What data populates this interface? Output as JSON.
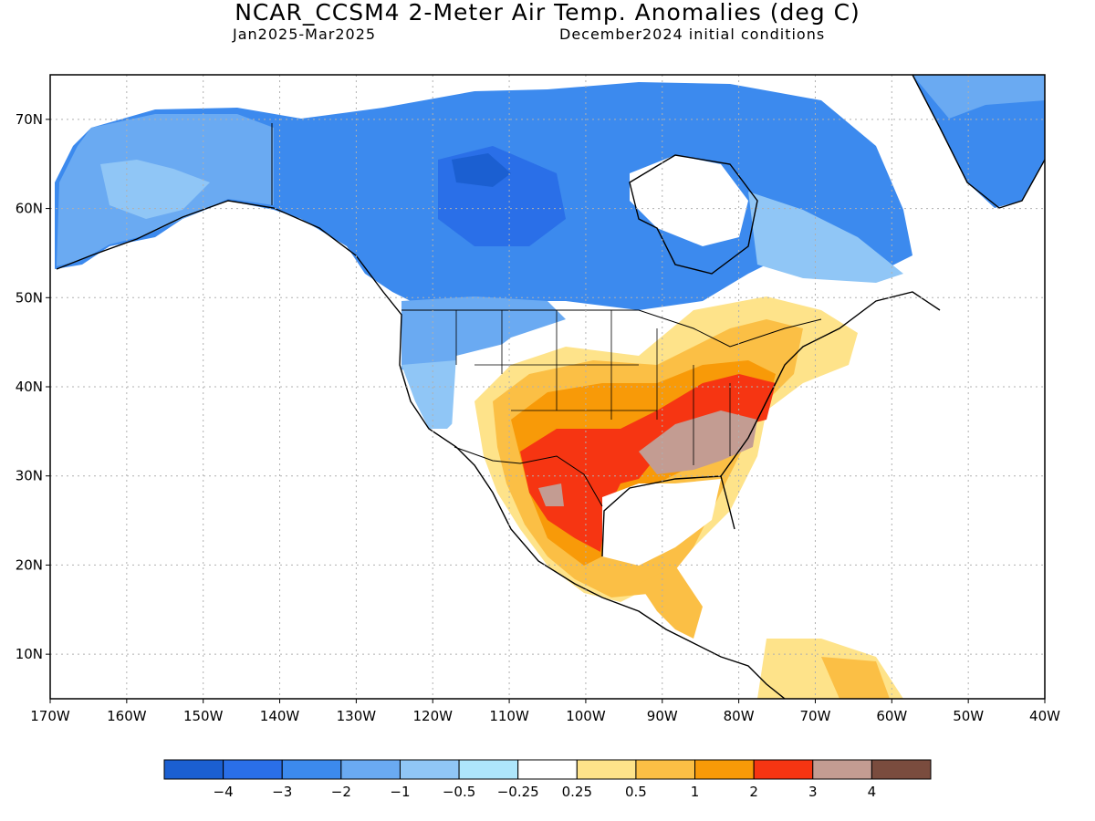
{
  "title": "NCAR_CCSM4 2-Meter Air Temp. Anomalies (deg C)",
  "subtitle_left": "Jan2025-Mar2025",
  "subtitle_right": "December2024 initial conditions",
  "map": {
    "lon_range": [
      -170,
      -40
    ],
    "lat_range": [
      5,
      75
    ],
    "lon_ticks": [
      "170W",
      "160W",
      "150W",
      "140W",
      "130W",
      "120W",
      "110W",
      "100W",
      "90W",
      "80W",
      "70W",
      "60W",
      "50W",
      "40W"
    ],
    "lat_ticks": [
      "10N",
      "20N",
      "30N",
      "40N",
      "50N",
      "60N",
      "70N"
    ],
    "grid": "dotted",
    "regions": [
      {
        "name": "alaska",
        "anomaly": "-2 to -1"
      },
      {
        "name": "northern-canada",
        "anomaly": "-3 to -2"
      },
      {
        "name": "hudson-bay-west",
        "anomaly": "-4 to -3"
      },
      {
        "name": "greenland",
        "anomaly": "-3 to -2"
      },
      {
        "name": "us-northwest",
        "anomaly": "-1 to -0.25"
      },
      {
        "name": "us-southwest-plains",
        "anomaly": "0.5 to 2"
      },
      {
        "name": "texas-mexico",
        "anomaly": "2 to 3"
      },
      {
        "name": "us-southeast",
        "anomaly": "3 to 4"
      },
      {
        "name": "us-northeast",
        "anomaly": "1 to 3"
      },
      {
        "name": "central-america",
        "anomaly": "0.25 to 1"
      }
    ]
  },
  "colorbar": {
    "colors": [
      "#1b5fd1",
      "#2a6fe8",
      "#3c8aee",
      "#6aaaf2",
      "#90c6f6",
      "#aee6fb",
      "#ffffff",
      "#fee38a",
      "#fbbf45",
      "#f89a08",
      "#f63512",
      "#c39c92",
      "#7a4c3e"
    ],
    "labels": [
      "-4",
      "-3",
      "-2",
      "-1",
      "-0.5",
      "-0.25",
      "0.25",
      "0.5",
      "1",
      "2",
      "3",
      "4"
    ]
  },
  "colors": {
    "ocean": "#ffffff",
    "coast": "#000000",
    "grid": "#b0b0b0"
  }
}
